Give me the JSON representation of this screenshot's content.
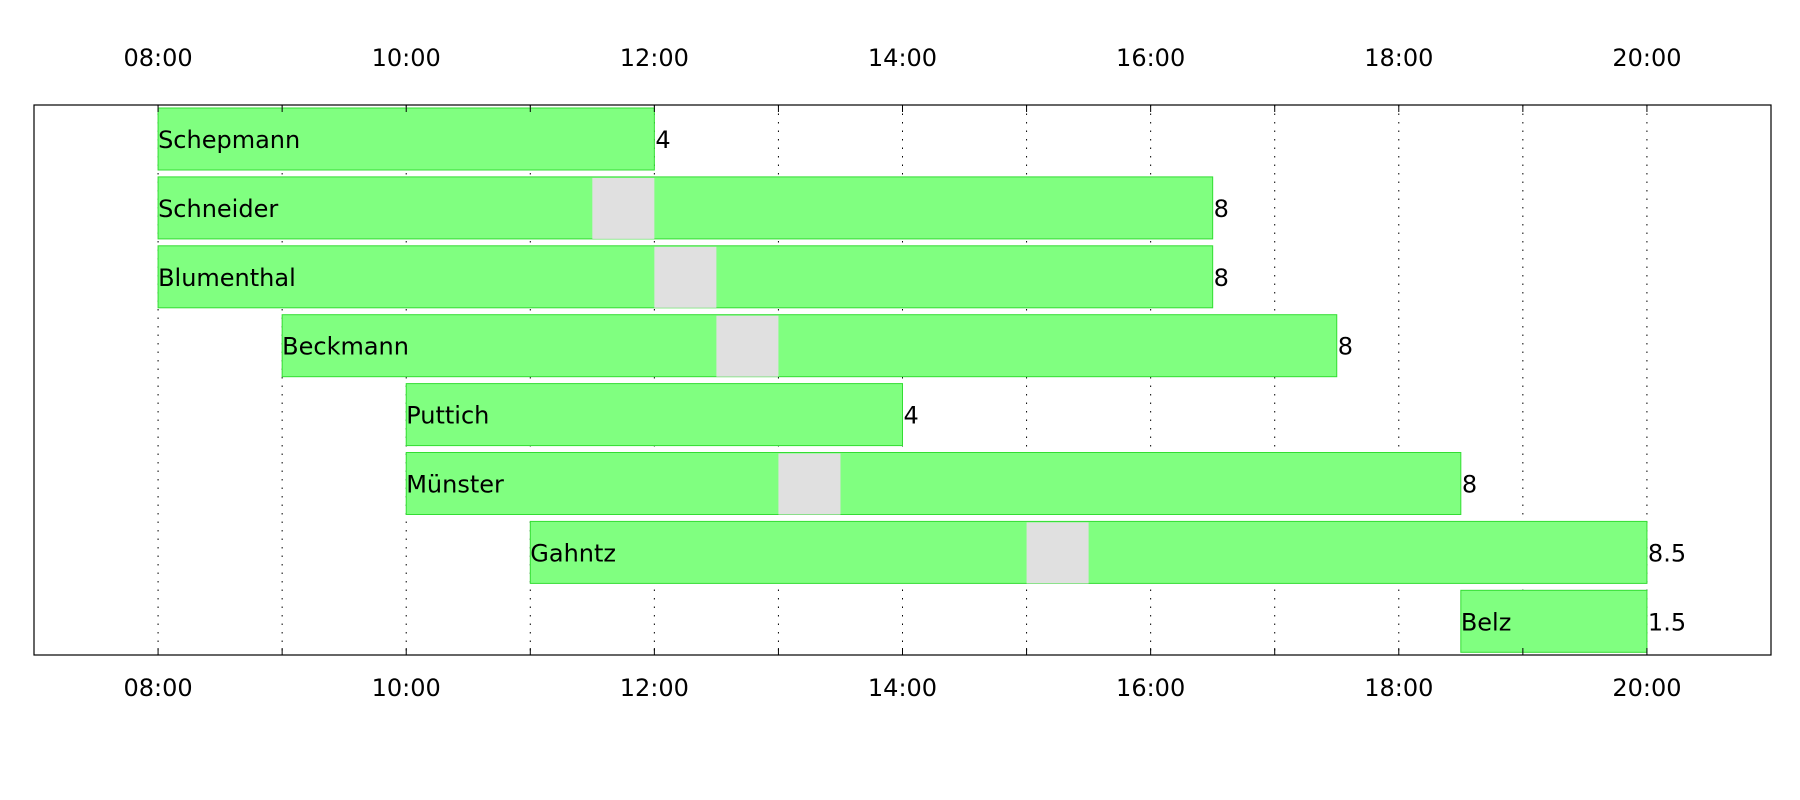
{
  "chart_data": {
    "type": "gantt",
    "title": "",
    "xlabel": "",
    "ylabel": "",
    "x_range": [
      "07:00",
      "21:00"
    ],
    "x_ticks": [
      "08:00",
      "10:00",
      "12:00",
      "14:00",
      "16:00",
      "18:00",
      "20:00"
    ],
    "grid": "vertical-dotted-hourly",
    "colors": {
      "work": "#80ff80",
      "work_border": "#33dd33",
      "break": "#e0e0e0",
      "grid": "#000000"
    },
    "rows": [
      {
        "name": "Schepmann",
        "start": "08:00",
        "end": "12:00",
        "break": null,
        "hours": "4"
      },
      {
        "name": "Schneider",
        "start": "08:00",
        "end": "16:30",
        "break": [
          "11:30",
          "12:00"
        ],
        "hours": "8"
      },
      {
        "name": "Blumenthal",
        "start": "08:00",
        "end": "16:30",
        "break": [
          "12:00",
          "12:30"
        ],
        "hours": "8"
      },
      {
        "name": "Beckmann",
        "start": "09:00",
        "end": "17:30",
        "break": [
          "12:30",
          "13:00"
        ],
        "hours": "8"
      },
      {
        "name": "Puttich",
        "start": "10:00",
        "end": "14:00",
        "break": null,
        "hours": "4"
      },
      {
        "name": "Münster",
        "start": "10:00",
        "end": "18:30",
        "break": [
          "13:00",
          "13:30"
        ],
        "hours": "8"
      },
      {
        "name": "Gahntz",
        "start": "11:00",
        "end": "20:00",
        "break": [
          "15:00",
          "15:30"
        ],
        "hours": "8.5"
      },
      {
        "name": "Belz",
        "start": "18:30",
        "end": "20:00",
        "break": null,
        "hours": "1.5"
      }
    ]
  }
}
